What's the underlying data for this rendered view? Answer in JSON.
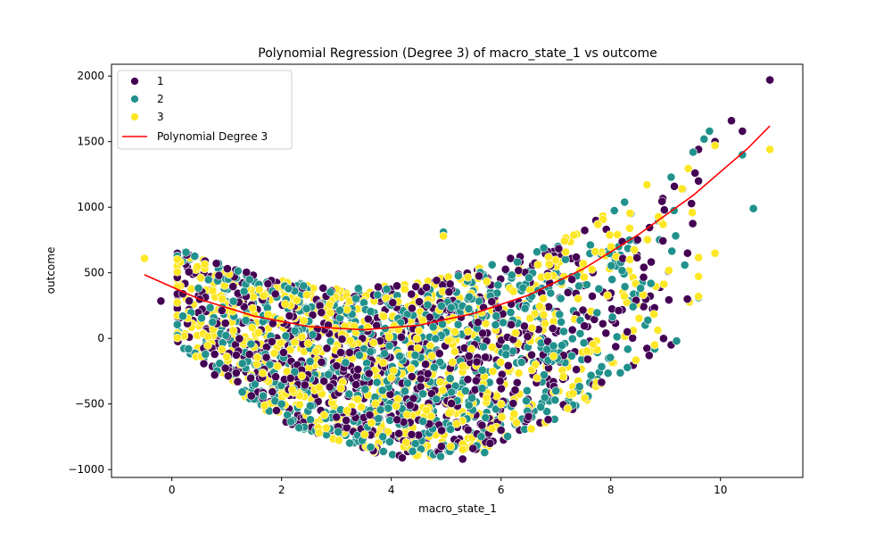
{
  "chart_data": {
    "type": "scatter",
    "title": "Polynomial Regression (Degree 3) of macro_state_1 vs outcome",
    "xlabel": "macro_state_1",
    "ylabel": "outcome",
    "xlim": [
      -1.1,
      11.5
    ],
    "ylim": [
      -1060,
      2090
    ],
    "x_ticks": [
      0,
      2,
      4,
      6,
      8,
      10
    ],
    "y_ticks": [
      -1000,
      -500,
      0,
      500,
      1000,
      1500,
      2000
    ],
    "grid": false,
    "legend_position": "top-left",
    "series": [
      {
        "name": "1",
        "color": "#440154",
        "points": [
          [
            -0.2,
            285
          ],
          [
            0.2,
            340
          ],
          [
            1.2,
            -330
          ],
          [
            4.2,
            -910
          ],
          [
            5.3,
            -920
          ],
          [
            5.8,
            -800
          ],
          [
            8.3,
            50
          ],
          [
            8.7,
            -130
          ],
          [
            9.1,
            -50
          ],
          [
            9.4,
            650
          ],
          [
            9.9,
            1500
          ],
          [
            10.2,
            1660
          ],
          [
            10.4,
            1580
          ],
          [
            10.9,
            1970
          ],
          [
            9.6,
            1200
          ],
          [
            6.0,
            -700
          ],
          [
            3.0,
            -600
          ]
        ]
      },
      {
        "name": "2",
        "color": "#21918c",
        "points": [
          [
            0.2,
            170
          ],
          [
            4.9,
            -900
          ],
          [
            5.7,
            -870
          ],
          [
            4.95,
            810
          ],
          [
            8.8,
            -80
          ],
          [
            9.2,
            -20
          ],
          [
            9.6,
            310
          ],
          [
            9.5,
            1420
          ],
          [
            9.7,
            1520
          ],
          [
            9.8,
            1580
          ],
          [
            10.4,
            1400
          ],
          [
            10.6,
            990
          ],
          [
            2.0,
            -500
          ],
          [
            7.0,
            -400
          ]
        ]
      },
      {
        "name": "3",
        "color": "#fde725",
        "points": [
          [
            -0.5,
            610
          ],
          [
            4.95,
            780
          ],
          [
            9.9,
            1470
          ],
          [
            10.9,
            1440
          ],
          [
            9.9,
            650
          ],
          [
            9.6,
            320
          ],
          [
            9.3,
            1140
          ],
          [
            8.8,
            -50
          ],
          [
            1.0,
            -140
          ],
          [
            6.0,
            -500
          ],
          [
            4.0,
            -300
          ]
        ]
      }
    ],
    "regression": {
      "name": "Polynomial Degree 3",
      "color": "#ff0000",
      "x": [
        -0.5,
        0.5,
        1.5,
        2.5,
        3.5,
        4.5,
        5.5,
        6.5,
        7.5,
        8.5,
        9.5,
        10.5,
        10.9
      ],
      "y": [
        485,
        300,
        170,
        90,
        65,
        100,
        190,
        330,
        530,
        790,
        1090,
        1450,
        1620
      ]
    }
  }
}
